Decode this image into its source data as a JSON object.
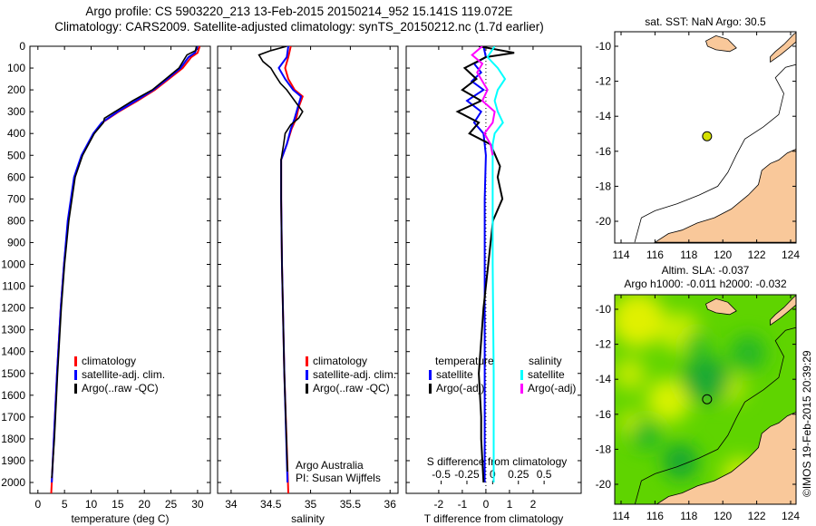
{
  "title": {
    "line1": "Argo profile: CS 5903220_213 13-Feb-2015 20150214_952 15.141S 119.072E",
    "line2": "Climatology: CARS2009. Satellite-adjusted climatology: synTS_20150212.nc (1.7d earlier)"
  },
  "credit": "©IMOS 19-Feb-2015 20:39:29",
  "colors": {
    "climatology": "#ff0000",
    "satellite": "#0000ff",
    "argo": "#000000",
    "sal_satellite": "#00ffff",
    "sal_argo": "#ff00ff",
    "land": "#f9c89a"
  },
  "chart_data": [
    {
      "type": "line",
      "name": "temperature",
      "xlabel": "temperature (deg C)",
      "ylabel": "",
      "xlim": [
        -1.5,
        32.4
      ],
      "ylim": [
        0,
        2050
      ],
      "xticks": [
        "0",
        "5",
        "10",
        "15",
        "20",
        "25",
        "30"
      ],
      "yticks": [
        "0",
        "100",
        "200",
        "300",
        "400",
        "500",
        "600",
        "700",
        "800",
        "900",
        "1000",
        "1100",
        "1200",
        "1300",
        "1400",
        "1500",
        "1600",
        "1700",
        "1800",
        "1900",
        "2000"
      ],
      "legend": [
        "climatology",
        "satellite-adj. clim.",
        "Argo(..raw -QC)"
      ],
      "series": [
        {
          "name": "climatology",
          "depth": [
            0,
            30,
            50,
            100,
            150,
            200,
            250,
            300,
            350,
            400,
            500,
            600,
            800,
            1000,
            1200,
            1500,
            1800,
            2000,
            2050
          ],
          "values": [
            30.4,
            30,
            28.8,
            27.2,
            24.6,
            22,
            18.7,
            15.2,
            12.1,
            10.5,
            8.3,
            6.9,
            5.7,
            4.9,
            4.3,
            3.6,
            3.0,
            2.6,
            2.5
          ]
        },
        {
          "name": "satellite-adj. clim.",
          "depth": [
            0,
            30,
            50,
            100,
            150,
            200,
            250,
            300,
            350,
            400,
            500,
            600,
            800,
            1000,
            1200,
            1500,
            1800,
            2000
          ],
          "values": [
            30,
            29.5,
            28.3,
            26.8,
            24.3,
            21.7,
            18.4,
            15,
            12,
            10.4,
            8.2,
            6.8,
            5.6,
            4.9,
            4.3,
            3.6,
            3.0,
            2.6
          ]
        },
        {
          "name": "Argo(..raw -QC)",
          "depth": [
            0,
            20,
            40,
            60,
            100,
            150,
            200,
            250,
            300,
            330,
            350,
            400,
            500,
            600,
            800,
            1000,
            1200,
            1500,
            1800,
            1980
          ],
          "values": [
            29.8,
            29.6,
            28,
            27.5,
            26.5,
            24,
            21.5,
            17.8,
            14.5,
            12.5,
            12.3,
            10.6,
            8.4,
            7,
            5.8,
            5,
            4.4,
            3.7,
            3.1,
            2.6
          ]
        }
      ]
    },
    {
      "type": "line",
      "name": "salinity",
      "xlabel": "salinity",
      "ylabel": "",
      "xlim": [
        33.83,
        36.1
      ],
      "ylim": [
        0,
        2050
      ],
      "xticks": [
        "34",
        "34.5",
        "35",
        "35.5",
        "36"
      ],
      "legend": [
        "climatology",
        "satellite-adj. clim.",
        "Argo(..raw -QC)"
      ],
      "annotation": [
        "Argo Australia",
        "PI: Susan Wijffels"
      ],
      "series": [
        {
          "name": "climatology",
          "depth": [
            0,
            50,
            100,
            150,
            200,
            230,
            280,
            330,
            380,
            450,
            520,
            700,
            1000,
            1500,
            2050
          ],
          "values": [
            34.75,
            34.72,
            34.68,
            34.72,
            34.8,
            34.9,
            34.85,
            34.82,
            34.76,
            34.7,
            34.63,
            34.63,
            34.64,
            34.67,
            34.72
          ]
        },
        {
          "name": "satellite-adj. clim.",
          "depth": [
            0,
            50,
            100,
            150,
            200,
            230,
            280,
            330,
            380,
            450,
            520,
            700,
            1000,
            1500,
            2000
          ],
          "values": [
            34.72,
            34.7,
            34.6,
            34.68,
            34.78,
            34.88,
            34.84,
            34.8,
            34.75,
            34.7,
            34.63,
            34.63,
            34.64,
            34.67,
            34.71
          ]
        },
        {
          "name": "Argo(..raw -QC)",
          "depth": [
            0,
            20,
            40,
            70,
            100,
            130,
            170,
            200,
            250,
            300,
            330,
            360,
            400,
            450,
            520,
            700,
            1000,
            1500,
            1950
          ],
          "values": [
            34.7,
            34.5,
            34.35,
            34.4,
            34.5,
            34.55,
            34.62,
            34.7,
            34.8,
            34.9,
            34.85,
            34.75,
            34.68,
            34.66,
            34.63,
            34.63,
            34.64,
            34.67,
            34.71
          ]
        }
      ]
    },
    {
      "type": "line",
      "name": "difference",
      "xlabel": "T difference from climatology",
      "x2label": "S difference from climatology",
      "xlim": [
        -3.38,
        4.04
      ],
      "x2lim": [
        -0.84,
        0.86
      ],
      "ylim": [
        0,
        2050
      ],
      "xticks": [
        "-2",
        "-1",
        "0",
        "1",
        "2"
      ],
      "x2ticks": [
        "-0.5",
        "-0.25",
        "0",
        "0.25",
        "0.5"
      ],
      "legend": {
        "temperature_title": "temperature",
        "salinity_title": "salinity",
        "t_sat": "satellite",
        "t_argo": "Argo(-adj)",
        "s_sat": "satellite",
        "s_argo": "Argo(-adj)"
      },
      "series": [
        {
          "name": "temperature satellite",
          "axis": "T",
          "depth": [
            0,
            50,
            80,
            120,
            160,
            200,
            250,
            300,
            350,
            400,
            500,
            700,
            1000,
            1500,
            2000
          ],
          "values": [
            -0.1,
            0,
            -0.5,
            -0.2,
            -0.6,
            -0.1,
            -0.8,
            -0.2,
            -0.5,
            -0.1,
            0,
            -0.05,
            -0.05,
            -0.05,
            -0.05
          ]
        },
        {
          "name": "temperature Argo(-adj)",
          "axis": "T",
          "depth": [
            0,
            30,
            50,
            100,
            150,
            200,
            250,
            300,
            350,
            400,
            450,
            500,
            550,
            600,
            700,
            800,
            1000,
            1200,
            1500,
            1700,
            1800,
            2000
          ],
          "values": [
            -0.3,
            1.2,
            0,
            -0.9,
            -0.4,
            -1.0,
            -0.2,
            -1.2,
            -0.3,
            -0.7,
            0.2,
            0.4,
            0.6,
            0.5,
            0.7,
            0.3,
            0.1,
            -0.1,
            -0.3,
            -0.2,
            -0.2,
            -0.1
          ]
        },
        {
          "name": "salinity satellite",
          "axis": "S",
          "depth": [
            0,
            50,
            100,
            150,
            200,
            250,
            300,
            350,
            400,
            450,
            500,
            700,
            1000,
            1500,
            2000
          ],
          "values": [
            0.02,
            -0.05,
            0.05,
            0.12,
            0.05,
            0.02,
            0.05,
            0.1,
            0.02,
            0.0,
            0.0,
            0.0,
            0.0,
            0.01,
            0.01
          ]
        },
        {
          "name": "salinity Argo(-adj)",
          "axis": "S",
          "depth": [
            0,
            40,
            80,
            120,
            160,
            200,
            250,
            300,
            350,
            400,
            450,
            500
          ],
          "values": [
            -0.1,
            -0.2,
            -0.1,
            -0.15,
            -0.1,
            -0.05,
            -0.1,
            0.02,
            0.0,
            -0.08,
            -0.02,
            0.0
          ]
        }
      ]
    },
    {
      "type": "map",
      "name": "sst-map",
      "title": "sat. SST: NaN Argo: 30.5",
      "xlim": [
        113.6,
        124.4
      ],
      "ylim": [
        -21.1,
        -9.2
      ],
      "xticks": [
        "114",
        "116",
        "118",
        "120",
        "122",
        "124"
      ],
      "yticks": [
        "-10",
        "-12",
        "-14",
        "-16",
        "-18",
        "-20"
      ],
      "argo_position": {
        "lon": 119.072,
        "lat": -15.141
      }
    },
    {
      "type": "map",
      "name": "sla-map",
      "title": [
        "Altim. SLA: -0.037",
        "Argo h1000: -0.011 h2000: -0.032"
      ],
      "xlim": [
        113.6,
        124.4
      ],
      "ylim": [
        -21.1,
        -9.4
      ],
      "xticks": [
        "114",
        "116",
        "118",
        "120",
        "122",
        "124"
      ],
      "yticks": [
        "-10",
        "-12",
        "-14",
        "-16",
        "-18",
        "-20"
      ],
      "argo_position": {
        "lon": 119.072,
        "lat": -15.141
      }
    }
  ]
}
